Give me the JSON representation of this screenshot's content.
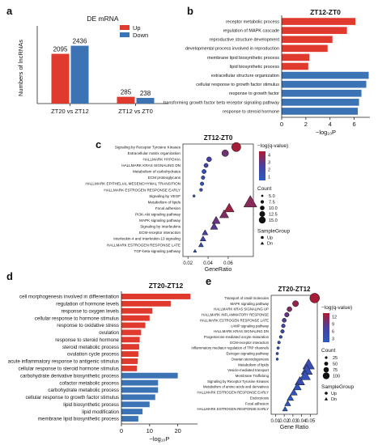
{
  "panel_letters": [
    "a",
    "b",
    "c",
    "d",
    "e"
  ],
  "colors": {
    "up": "#e03a2f",
    "down": "#3b73b4",
    "axis": "#222222",
    "dot_high": "#b01a2e",
    "dot_mid": "#4a3f9f",
    "dot_low": "#2b59c3"
  },
  "chart_data": [
    {
      "id": "a",
      "type": "bar",
      "title": "DE mRNA",
      "ylabel": "Numbers of lncRNAs",
      "xlabel": "",
      "categories": [
        "ZT20 vs ZT12",
        "ZT12 vs ZT0"
      ],
      "series": [
        {
          "name": "Up",
          "values": [
            2095,
            285
          ]
        },
        {
          "name": "Down",
          "values": [
            2436,
            238
          ]
        }
      ],
      "ylim": [
        0,
        3000
      ],
      "legend": "top-right",
      "grid": false
    },
    {
      "id": "b",
      "type": "bar",
      "orientation": "horizontal",
      "title": "ZT12-ZT0",
      "xlabel": "−log₁₀P",
      "xticks": [
        "0",
        "2",
        "4",
        "6"
      ],
      "xlim": [
        0,
        7.3
      ],
      "categories": [
        "receptor metabolic process",
        "regulation of MAPK cascade",
        "reproductive structure development",
        "developmental process involved in reproduction",
        "membrane lipid biosynthetic process",
        "lipid biosynthetic process",
        "extracellular structure organization",
        "cellular response to growth factor stimulus",
        "response to growth factor",
        "transforming growth factor beta receptor signaling pathway",
        "response to steroid hormone"
      ],
      "values": [
        6.1,
        5.4,
        4.2,
        3.8,
        2.3,
        2.2,
        7.2,
        7.0,
        6.6,
        6.4,
        6.3
      ],
      "groups": [
        "up",
        "up",
        "up",
        "up",
        "up",
        "up",
        "down",
        "down",
        "down",
        "down",
        "down"
      ]
    },
    {
      "id": "c",
      "type": "scatter",
      "title": "ZT12-ZT0",
      "xlabel": "GeneRatio",
      "xticks": [
        "0.02",
        "0.04",
        "0.06"
      ],
      "xlim": [
        0.015,
        0.085
      ],
      "color_legend_title": "−log(q-value)",
      "color_ticks": [
        "4",
        "3",
        "2",
        "1"
      ],
      "crange": [
        1,
        4.8
      ],
      "size_legend_title": "Count",
      "size_ticks": [
        "5.0",
        "7.5",
        "10.0",
        "12.5",
        "15.0"
      ],
      "shape_legend_title": "SampleGroup",
      "shape_entries": [
        "Up",
        "Dn"
      ],
      "categories": [
        "Signaling by Receptor Tyrosine Kinases",
        "Extracellular matrix organization",
        "HALLMARK HYPOXIA",
        "HALLMARK KRAS SIGNALING DN",
        "Metabolism of carbohydrates",
        "ECM proteoglycans",
        "HALLMARK EPITHELIAL MESENCHYMAL TRANSITION",
        "HALLMARK ESTROGEN RESPONSE EARLY",
        "Signaling by VEGF",
        "Metabolism of lipids",
        "Focal adhesion",
        "PI3K-Akt signaling pathway",
        "MAPK signaling pathway",
        "Signaling by Interleukins",
        "ECM-receptor interaction",
        "Interleukin-4 and Interleukin-13 signaling",
        "HALLMARK ESTROGEN RESPONSE LATE",
        "TGF-beta signaling pathway"
      ],
      "points": [
        {
          "x": 0.068,
          "count": 15,
          "q": 4.6,
          "shape": "up"
        },
        {
          "x": 0.057,
          "count": 11,
          "q": 3.6,
          "shape": "up"
        },
        {
          "x": 0.041,
          "count": 8,
          "q": 2.8,
          "shape": "up"
        },
        {
          "x": 0.038,
          "count": 7,
          "q": 2.3,
          "shape": "up"
        },
        {
          "x": 0.036,
          "count": 7,
          "q": 1.8,
          "shape": "up"
        },
        {
          "x": 0.035,
          "count": 6,
          "q": 1.5,
          "shape": "up"
        },
        {
          "x": 0.034,
          "count": 6,
          "q": 1.3,
          "shape": "up"
        },
        {
          "x": 0.033,
          "count": 5,
          "q": 1.2,
          "shape": "up"
        },
        {
          "x": 0.026,
          "count": 4,
          "q": 1.1,
          "shape": "up"
        },
        {
          "x": 0.082,
          "count": 16,
          "q": 4.1,
          "shape": "dn"
        },
        {
          "x": 0.061,
          "count": 12,
          "q": 4.4,
          "shape": "dn"
        },
        {
          "x": 0.056,
          "count": 11,
          "q": 3.9,
          "shape": "dn"
        },
        {
          "x": 0.048,
          "count": 10,
          "q": 3.5,
          "shape": "dn"
        },
        {
          "x": 0.046,
          "count": 9,
          "q": 3.1,
          "shape": "dn"
        },
        {
          "x": 0.037,
          "count": 7,
          "q": 2.6,
          "shape": "dn"
        },
        {
          "x": 0.035,
          "count": 7,
          "q": 2.2,
          "shape": "dn"
        },
        {
          "x": 0.033,
          "count": 6,
          "q": 1.6,
          "shape": "dn"
        },
        {
          "x": 0.027,
          "count": 4,
          "q": 1.1,
          "shape": "dn"
        }
      ]
    },
    {
      "id": "d",
      "type": "bar",
      "orientation": "horizontal",
      "title": "ZT20-ZT12",
      "xlabel": "−log₁₀P",
      "xticks": [
        "0",
        "10",
        "20"
      ],
      "xlim": [
        0,
        27
      ],
      "categories": [
        "cell morphogenesis involved in differentiation",
        "regulation of hormone levels",
        "response to oxygen levels",
        "cellular response to hormone stimulus",
        "response to oxidative stress",
        "ovulation",
        "response to steroid hormone",
        "steroid metabolic process",
        "ovulation cycle process",
        "acute inflammatory response to antigenic stimulus",
        "cellular response to steroid hormone stimulus",
        "carbohydrate derivative biosynthetic process",
        "cofactor metabolic process",
        "carbohydrate metabolic process",
        "cellular response to growth factor stimulus",
        "lipid biosynthetic process",
        "lipid modification",
        "membrane lipid biosynthetic process"
      ],
      "values": [
        24.5,
        17.5,
        11,
        10,
        8.5,
        7,
        6.5,
        6.3,
        6,
        5.8,
        5.5,
        20,
        13,
        13,
        12,
        10,
        7.5,
        6
      ],
      "groups": [
        "up",
        "up",
        "up",
        "up",
        "up",
        "up",
        "up",
        "up",
        "up",
        "up",
        "up",
        "down",
        "down",
        "down",
        "down",
        "down",
        "down",
        "down"
      ]
    },
    {
      "id": "e",
      "type": "scatter",
      "title": "ZT20-ZT12",
      "xlabel": "Gene Ratio",
      "xticks": [
        "0.01",
        "0.02",
        "0.03",
        "0.04",
        "0.05"
      ],
      "xlim": [
        0.005,
        0.058
      ],
      "color_legend_title": "−log(q-value)",
      "color_ticks": [
        "12",
        "9",
        "6",
        "3"
      ],
      "crange": [
        2,
        13
      ],
      "size_legend_title": "Count",
      "size_ticks": [
        "25",
        "50",
        "75",
        "100"
      ],
      "shape_legend_title": "SampleGroup",
      "shape_entries": [
        "Up",
        "Dn"
      ],
      "categories": [
        "Transport of small molecules",
        "MAPK signaling pathway",
        "HALLMARK KRAS SIGNALING UP",
        "HALLMARK INFLAMMATORY RESPONSE",
        "HALLMARK ESTROGEN RESPONSE LATE",
        "cAMP signaling pathway",
        "HALLMARK KRAS SIGNALING DN",
        "Progesterone-mediated oocyte maturation",
        "ECM-receptor interaction",
        "Inflammatory mediator regulation of TRP channels",
        "Estrogen signaling pathway",
        "Ovarian steroidogenesis",
        "Metabolism of lipids",
        "Vesicle-mediated transport",
        "Membrane Trafficking",
        "Signaling by Receptor Tyrosine Kinases",
        "Metabolism of amino acids and derivatives",
        "HALLMARK ESTROGEN RESPONSE EARLY",
        "Endocytosis",
        "Focal adhesion",
        "HALLMARK ESTROGEN RESPONSE EARLY"
      ],
      "points": [
        {
          "x": 0.055,
          "count": 110,
          "q": 12.5,
          "shape": "up"
        },
        {
          "x": 0.033,
          "count": 60,
          "q": 11.5,
          "shape": "up"
        },
        {
          "x": 0.026,
          "count": 45,
          "q": 10.5,
          "shape": "up"
        },
        {
          "x": 0.023,
          "count": 40,
          "q": 9.0,
          "shape": "up"
        },
        {
          "x": 0.02,
          "count": 35,
          "q": 7.5,
          "shape": "up"
        },
        {
          "x": 0.019,
          "count": 30,
          "q": 6.0,
          "shape": "up"
        },
        {
          "x": 0.018,
          "count": 28,
          "q": 5.0,
          "shape": "up"
        },
        {
          "x": 0.016,
          "count": 20,
          "q": 3.5,
          "shape": "up"
        },
        {
          "x": 0.014,
          "count": 18,
          "q": 3.0,
          "shape": "up"
        },
        {
          "x": 0.013,
          "count": 15,
          "q": 2.6,
          "shape": "up"
        },
        {
          "x": 0.012,
          "count": 14,
          "q": 2.4,
          "shape": "up"
        },
        {
          "x": 0.012,
          "count": 12,
          "q": 2.2,
          "shape": "up"
        },
        {
          "x": 0.048,
          "count": 95,
          "q": 4.5,
          "shape": "dn"
        },
        {
          "x": 0.046,
          "count": 90,
          "q": 4.0,
          "shape": "dn"
        },
        {
          "x": 0.044,
          "count": 85,
          "q": 3.5,
          "shape": "dn"
        },
        {
          "x": 0.038,
          "count": 75,
          "q": 5.0,
          "shape": "dn"
        },
        {
          "x": 0.035,
          "count": 60,
          "q": 3.0,
          "shape": "dn"
        },
        {
          "x": 0.031,
          "count": 50,
          "q": 3.0,
          "shape": "dn"
        },
        {
          "x": 0.027,
          "count": 45,
          "q": 2.5,
          "shape": "dn"
        },
        {
          "x": 0.024,
          "count": 40,
          "q": 2.2,
          "shape": "dn"
        },
        {
          "x": 0.021,
          "count": 30,
          "q": 2.0,
          "shape": "dn"
        }
      ]
    }
  ]
}
